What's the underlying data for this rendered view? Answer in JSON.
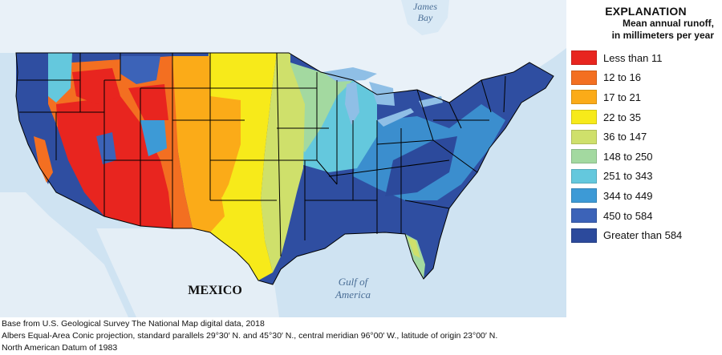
{
  "map": {
    "labels": {
      "james_bay": [
        "James",
        "Bay"
      ],
      "mexico": "MEXICO",
      "gulf": [
        "Gulf of",
        "America"
      ]
    },
    "colors": {
      "ocean": "#cfe3f2",
      "canada": "#e9f1f8",
      "lakes": "#8fbfe6",
      "borders": "#000000"
    }
  },
  "legend": {
    "title": "EXPLANATION",
    "subtitle_line1": "Mean annual runoff,",
    "subtitle_line2": "in millimeters per year",
    "items": [
      {
        "label": "Less than 11",
        "color": "#e8251f"
      },
      {
        "label": "12 to 16",
        "color": "#f36f21"
      },
      {
        "label": "17 to 21",
        "color": "#fbab18"
      },
      {
        "label": "22 to 35",
        "color": "#f7ea1a"
      },
      {
        "label": "36 to 147",
        "color": "#cfe06b"
      },
      {
        "label": "148 to 250",
        "color": "#a3d9a0"
      },
      {
        "label": "251 to 343",
        "color": "#64c8dd"
      },
      {
        "label": "344 to 449",
        "color": "#3d9ad6"
      },
      {
        "label": "450 to 584",
        "color": "#3c63b8"
      },
      {
        "label": "Greater than 584",
        "color": "#2c4a9c"
      }
    ]
  },
  "credits": [
    "Base from U.S. Geological Survey The National Map digital data, 2018",
    "Albers Equal-Area Conic projection, standard parallels 29°30′ N. and 45°30′ N., central meridian 96°00′ W., latitude of origin 23°00′ N.",
    "North American Datum of 1983"
  ]
}
